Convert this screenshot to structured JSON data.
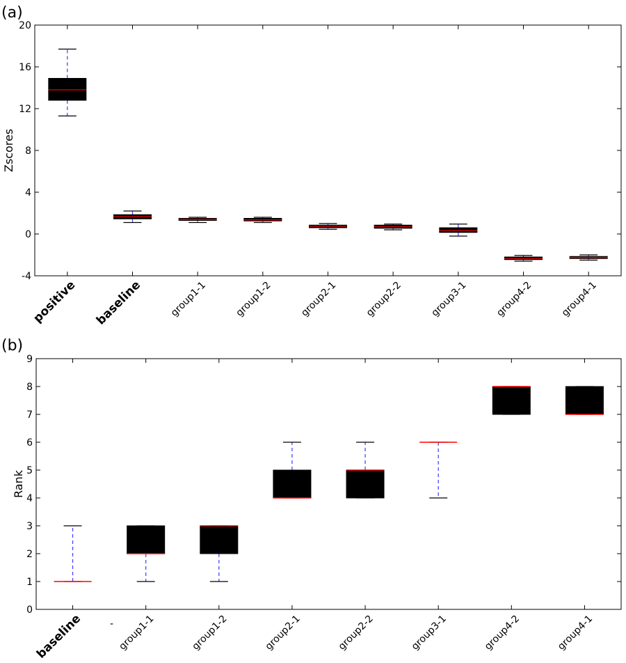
{
  "chart_data": [
    {
      "panel": "(a)",
      "type": "box",
      "ylabel": "Zscores",
      "ylim": [
        -4,
        20
      ],
      "yticks": [
        -4,
        0,
        4,
        8,
        12,
        16,
        20
      ],
      "colors": {
        "box": "#000000",
        "median": "#cc0000",
        "whisker": "#3b3bff",
        "cap": "#000000"
      },
      "categories": [
        {
          "label": "positive",
          "bold": true,
          "whislo": 11.3,
          "q1": 12.8,
          "med": 13.8,
          "q3": 14.9,
          "whishi": 17.7
        },
        {
          "label": "baseline",
          "bold": true,
          "whislo": 1.1,
          "q1": 1.45,
          "med": 1.65,
          "q3": 1.85,
          "whishi": 2.2
        },
        {
          "label": "group1-1",
          "bold": false,
          "whislo": 1.1,
          "q1": 1.3,
          "med": 1.4,
          "q3": 1.5,
          "whishi": 1.6
        },
        {
          "label": "group1-2",
          "bold": false,
          "whislo": 1.1,
          "q1": 1.25,
          "med": 1.35,
          "q3": 1.5,
          "whishi": 1.6
        },
        {
          "label": "group2-1",
          "bold": false,
          "whislo": 0.45,
          "q1": 0.6,
          "med": 0.75,
          "q3": 0.85,
          "whishi": 1.0
        },
        {
          "label": "group2-2",
          "bold": false,
          "whislo": 0.4,
          "q1": 0.55,
          "med": 0.7,
          "q3": 0.85,
          "whishi": 0.95
        },
        {
          "label": "group3-1",
          "bold": false,
          "whislo": -0.2,
          "q1": 0.15,
          "med": 0.35,
          "q3": 0.6,
          "whishi": 0.95
        },
        {
          "label": "group4-2",
          "bold": false,
          "whislo": -2.6,
          "q1": -2.45,
          "med": -2.35,
          "q3": -2.2,
          "whishi": -2.05
        },
        {
          "label": "group4-1",
          "bold": false,
          "whislo": -2.5,
          "q1": -2.35,
          "med": -2.25,
          "q3": -2.15,
          "whishi": -2.0
        }
      ]
    },
    {
      "panel": "(b)",
      "type": "box",
      "ylabel": "Rank",
      "ylim": [
        0,
        9
      ],
      "yticks": [
        0,
        1,
        2,
        3,
        4,
        5,
        6,
        7,
        8,
        9
      ],
      "colors": {
        "box": "#000000",
        "median": "#ff0000",
        "whisker": "#3b3bff",
        "cap": "#000000"
      },
      "categories": [
        {
          "label": "baseline",
          "bold": true,
          "whislo": 1,
          "q1": 1,
          "med": 1,
          "q3": 1,
          "whishi": 3
        },
        {
          "label": "group1-1",
          "bold": false,
          "whislo": 1,
          "q1": 2,
          "med": 2,
          "q3": 3,
          "whishi": 3
        },
        {
          "label": "group1-2",
          "bold": false,
          "whislo": 1,
          "q1": 2,
          "med": 3,
          "q3": 3,
          "whishi": 3
        },
        {
          "label": "group2-1",
          "bold": false,
          "whislo": 4,
          "q1": 4,
          "med": 4,
          "q3": 5,
          "whishi": 6
        },
        {
          "label": "group2-2",
          "bold": false,
          "whislo": 4,
          "q1": 4,
          "med": 5,
          "q3": 5,
          "whishi": 6
        },
        {
          "label": "group3-1",
          "bold": false,
          "whislo": 4,
          "q1": 6,
          "med": 6,
          "q3": 6,
          "whishi": 6
        },
        {
          "label": "group4-2",
          "bold": false,
          "whislo": 7,
          "q1": 7,
          "med": 8,
          "q3": 8,
          "whishi": 8
        },
        {
          "label": "group4-1",
          "bold": false,
          "whislo": 7,
          "q1": 7,
          "med": 7,
          "q3": 8,
          "whishi": 8
        }
      ],
      "stray_mark": "-"
    }
  ]
}
